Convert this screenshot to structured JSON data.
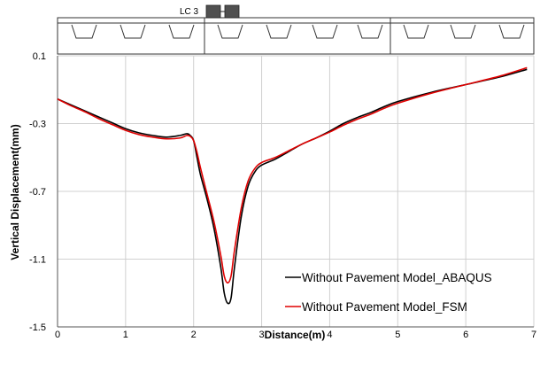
{
  "load_case_label": "LC 3",
  "chart_data": {
    "type": "line",
    "xlabel": "Distance(m)",
    "ylabel": "Vertical Displacement(mm)",
    "xlim": [
      0,
      7
    ],
    "ylim": [
      -1.5,
      0.1
    ],
    "xticks": [
      "0",
      "1",
      "2",
      "3",
      "4",
      "5",
      "6",
      "7"
    ],
    "yticks": [
      "0.1",
      "-0.3",
      "-0.7",
      "-1.1",
      "-1.5"
    ],
    "grid": true,
    "legend_position": "bottom-right",
    "series": [
      {
        "name": "Without Pavement Model_ABAQUS",
        "color": "#000000",
        "x": [
          0,
          0.2,
          0.4,
          0.6,
          0.8,
          1.0,
          1.2,
          1.4,
          1.6,
          1.8,
          1.9,
          1.95,
          2.0,
          2.05,
          2.1,
          2.2,
          2.3,
          2.4,
          2.45,
          2.5,
          2.55,
          2.6,
          2.7,
          2.8,
          2.9,
          3.0,
          3.2,
          3.4,
          3.6,
          3.8,
          4.0,
          4.2,
          4.4,
          4.6,
          4.8,
          5.0,
          5.5,
          6.0,
          6.5,
          6.9
        ],
        "y": [
          -0.155,
          -0.19,
          -0.225,
          -0.26,
          -0.295,
          -0.33,
          -0.355,
          -0.37,
          -0.38,
          -0.37,
          -0.36,
          -0.37,
          -0.4,
          -0.5,
          -0.6,
          -0.75,
          -0.92,
          -1.15,
          -1.3,
          -1.36,
          -1.33,
          -1.15,
          -0.85,
          -0.67,
          -0.585,
          -0.545,
          -0.51,
          -0.465,
          -0.42,
          -0.385,
          -0.345,
          -0.3,
          -0.265,
          -0.235,
          -0.2,
          -0.17,
          -0.115,
          -0.07,
          -0.025,
          0.02
        ]
      },
      {
        "name": "Without Pavement Model_FSM",
        "color": "#e00000",
        "x": [
          0,
          0.2,
          0.4,
          0.6,
          0.8,
          1.0,
          1.2,
          1.4,
          1.6,
          1.8,
          1.9,
          1.95,
          2.0,
          2.05,
          2.1,
          2.2,
          2.3,
          2.4,
          2.45,
          2.5,
          2.55,
          2.6,
          2.7,
          2.8,
          2.9,
          3.0,
          3.2,
          3.4,
          3.6,
          3.8,
          4.0,
          4.2,
          4.4,
          4.6,
          4.8,
          5.0,
          5.5,
          6.0,
          6.5,
          6.9
        ],
        "y": [
          -0.155,
          -0.195,
          -0.23,
          -0.27,
          -0.305,
          -0.34,
          -0.365,
          -0.38,
          -0.39,
          -0.385,
          -0.37,
          -0.375,
          -0.4,
          -0.47,
          -0.56,
          -0.72,
          -0.88,
          -1.08,
          -1.2,
          -1.24,
          -1.2,
          -1.05,
          -0.8,
          -0.64,
          -0.565,
          -0.53,
          -0.5,
          -0.46,
          -0.42,
          -0.385,
          -0.35,
          -0.31,
          -0.275,
          -0.245,
          -0.21,
          -0.18,
          -0.12,
          -0.07,
          -0.02,
          0.03
        ]
      }
    ]
  }
}
